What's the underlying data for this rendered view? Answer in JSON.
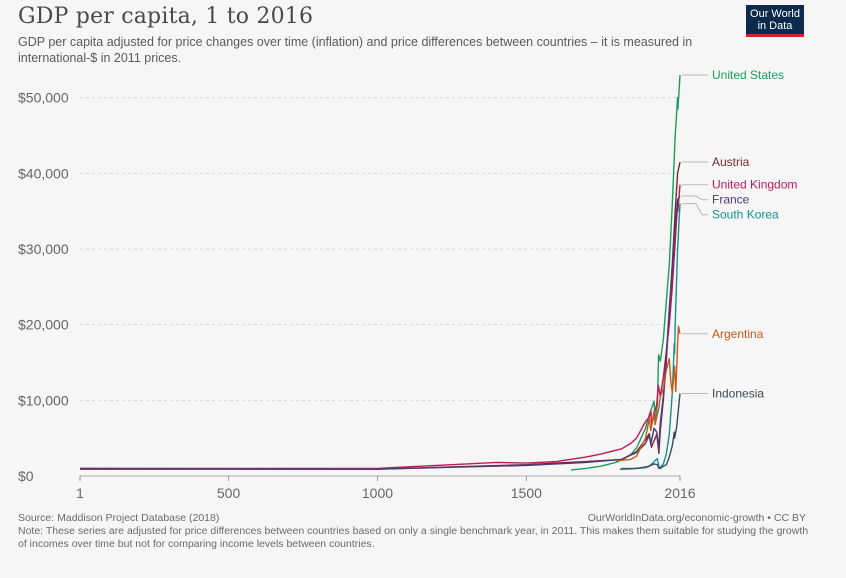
{
  "logo": {
    "line1": "Our World",
    "line2": "in Data"
  },
  "colors": {
    "United States": "#1a9d5c",
    "Austria": "#7a2b2b",
    "United Kingdom": "#c2185b",
    "France": "#4b3a78",
    "South Korea": "#15928a",
    "Argentina": "#c75a1a",
    "Indonesia": "#3d4a57"
  },
  "chart_data": {
    "type": "line",
    "title": "GDP per capita, 1 to 2016",
    "subtitle": "GDP per capita adjusted for price changes over time (inflation) and price differences between countries – it is measured in international-$ in 2011 prices.",
    "xlabel": "",
    "ylabel": "",
    "xlim": [
      1,
      2016
    ],
    "ylim": [
      0,
      53000
    ],
    "x_ticks": [
      1,
      500,
      1000,
      1500,
      2016
    ],
    "x_tick_labels": [
      "1",
      "500",
      "1000",
      "1500",
      "2016"
    ],
    "y_ticks": [
      0,
      10000,
      20000,
      30000,
      40000,
      50000
    ],
    "y_tick_labels": [
      "$0",
      "$10,000",
      "$20,000",
      "$30,000",
      "$40,000",
      "$50,000"
    ],
    "grid": true,
    "series": [
      {
        "name": "United States",
        "x": [
          1650,
          1700,
          1750,
          1800,
          1820,
          1850,
          1870,
          1900,
          1913,
          1929,
          1933,
          1940,
          1944,
          1950,
          1960,
          1970,
          1980,
          1990,
          2000,
          2008,
          2009,
          2016
        ],
        "y": [
          800,
          1000,
          1300,
          1800,
          2100,
          2800,
          3700,
          6300,
          8100,
          9900,
          7000,
          9500,
          16000,
          15200,
          18000,
          23000,
          28000,
          36000,
          45000,
          50000,
          48500,
          53000
        ]
      },
      {
        "name": "Austria",
        "x": [
          1,
          1000,
          1500,
          1600,
          1700,
          1820,
          1870,
          1900,
          1913,
          1920,
          1938,
          1945,
          1950,
          1960,
          1970,
          1980,
          1990,
          2000,
          2008,
          2016
        ],
        "y": [
          900,
          900,
          1500,
          1700,
          1900,
          2200,
          3200,
          4800,
          5600,
          3800,
          5500,
          3000,
          6000,
          10000,
          15000,
          22000,
          28000,
          35000,
          40000,
          41500
        ]
      },
      {
        "name": "United Kingdom",
        "x": [
          1,
          1000,
          1250,
          1300,
          1400,
          1500,
          1600,
          1700,
          1750,
          1800,
          1820,
          1850,
          1870,
          1900,
          1913,
          1918,
          1921,
          1938,
          1943,
          1950,
          1960,
          1970,
          1980,
          1990,
          2000,
          2008,
          2009,
          2016
        ],
        "y": [
          1000,
          1000,
          1500,
          1600,
          1800,
          1700,
          1900,
          2500,
          2900,
          3400,
          3600,
          4300,
          5000,
          7200,
          7800,
          8600,
          6800,
          9500,
          12000,
          10500,
          13000,
          16500,
          20000,
          25000,
          31000,
          36000,
          35000,
          38500
        ]
      },
      {
        "name": "France",
        "x": [
          1,
          1000,
          1500,
          1600,
          1700,
          1820,
          1870,
          1900,
          1913,
          1918,
          1929,
          1938,
          1944,
          1950,
          1960,
          1970,
          1980,
          1990,
          2000,
          2008,
          2016
        ],
        "y": [
          1000,
          900,
          1400,
          1600,
          1800,
          2200,
          3100,
          4300,
          5400,
          4200,
          6300,
          5800,
          3600,
          7000,
          10500,
          16000,
          22000,
          27000,
          33000,
          36500,
          37000
        ]
      },
      {
        "name": "South Korea",
        "x": [
          1820,
          1870,
          1900,
          1913,
          1940,
          1945,
          1950,
          1953,
          1960,
          1970,
          1980,
          1990,
          1997,
          1998,
          2000,
          2008,
          2016
        ],
        "y": [
          1000,
          1000,
          1100,
          1300,
          2300,
          1200,
          1100,
          1300,
          1600,
          2900,
          5500,
          11000,
          17500,
          16200,
          20000,
          30000,
          36000
        ]
      },
      {
        "name": "Argentina",
        "x": [
          1800,
          1850,
          1870,
          1900,
          1913,
          1918,
          1929,
          1932,
          1945,
          1950,
          1960,
          1970,
          1980,
          1985,
          1990,
          1998,
          2002,
          2008,
          2011,
          2016
        ],
        "y": [
          2000,
          2200,
          2600,
          5000,
          7600,
          6000,
          8600,
          6800,
          9000,
          10500,
          11500,
          14000,
          15500,
          12500,
          11000,
          14500,
          11200,
          17500,
          19800,
          18800
        ]
      },
      {
        "name": "Indonesia",
        "x": [
          1815,
          1850,
          1870,
          1900,
          1913,
          1929,
          1940,
          1945,
          1950,
          1960,
          1970,
          1980,
          1990,
          1997,
          1998,
          2005,
          2016
        ],
        "y": [
          900,
          950,
          1000,
          1200,
          1300,
          1600,
          1500,
          1000,
          1000,
          1300,
          1500,
          2500,
          4000,
          5800,
          5000,
          6500,
          10900
        ]
      }
    ],
    "end_labels": [
      {
        "name": "United States",
        "value": 53000
      },
      {
        "name": "Austria",
        "value": 41500
      },
      {
        "name": "United Kingdom",
        "value": 38500
      },
      {
        "name": "France",
        "value": 37000
      },
      {
        "name": "South Korea",
        "value": 36000
      },
      {
        "name": "Argentina",
        "value": 18800
      },
      {
        "name": "Indonesia",
        "value": 10900
      }
    ]
  },
  "footer": {
    "source": "Source: Maddison Project Database (2018)",
    "url": "OurWorldInData.org/economic-growth • CC BY",
    "note": "Note: These series are adjusted for price differences between countries based on only a single benchmark year, in 2011. This makes them suitable for studying the growth of incomes over time but not for comparing income levels between countries."
  }
}
